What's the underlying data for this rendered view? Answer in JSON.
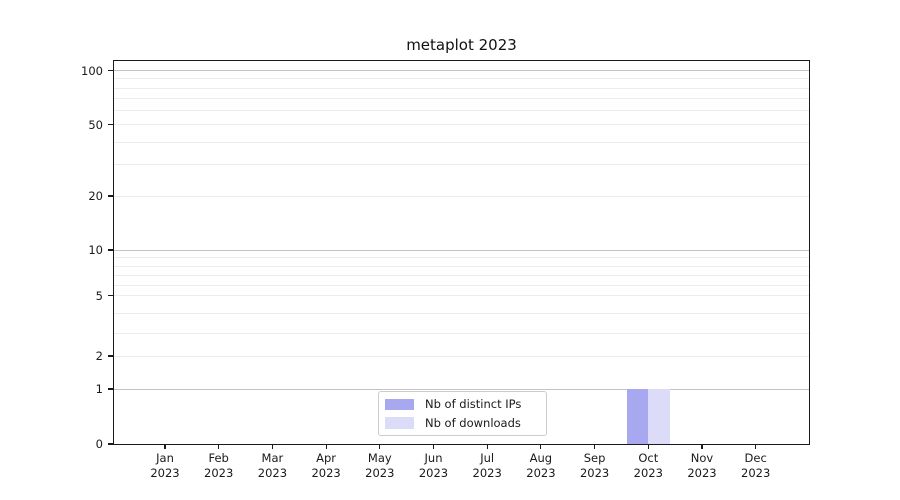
{
  "chart_data": {
    "type": "bar",
    "title": "metaplot 2023",
    "categories": [
      "Jan 2023",
      "Feb 2023",
      "Mar 2023",
      "Apr 2023",
      "May 2023",
      "Jun 2023",
      "Jul 2023",
      "Aug 2023",
      "Sep 2023",
      "Oct 2023",
      "Nov 2023",
      "Dec 2023"
    ],
    "series": [
      {
        "name": "Nb of distinct IPs",
        "color": "#a8a8f0",
        "values": [
          0,
          0,
          0,
          0,
          0,
          0,
          0,
          0,
          0,
          1,
          0,
          0
        ]
      },
      {
        "name": "Nb of downloads",
        "color": "#dcdcf8",
        "values": [
          0,
          0,
          0,
          0,
          0,
          0,
          0,
          0,
          0,
          1,
          0,
          0
        ]
      }
    ],
    "yticks": [
      0,
      1,
      2,
      5,
      10,
      20,
      50,
      100
    ],
    "ylim": [
      0,
      115
    ],
    "yscale": "log-like with linear zero region",
    "xlabel": "",
    "ylabel": "",
    "grid": "horizontal major and minor lines",
    "legend_position": "lower center",
    "colors": {
      "grid_major": "#c3c3c3",
      "grid_minor": "#ececec",
      "spine": "#1a1a1a",
      "background": "#ffffff"
    }
  }
}
